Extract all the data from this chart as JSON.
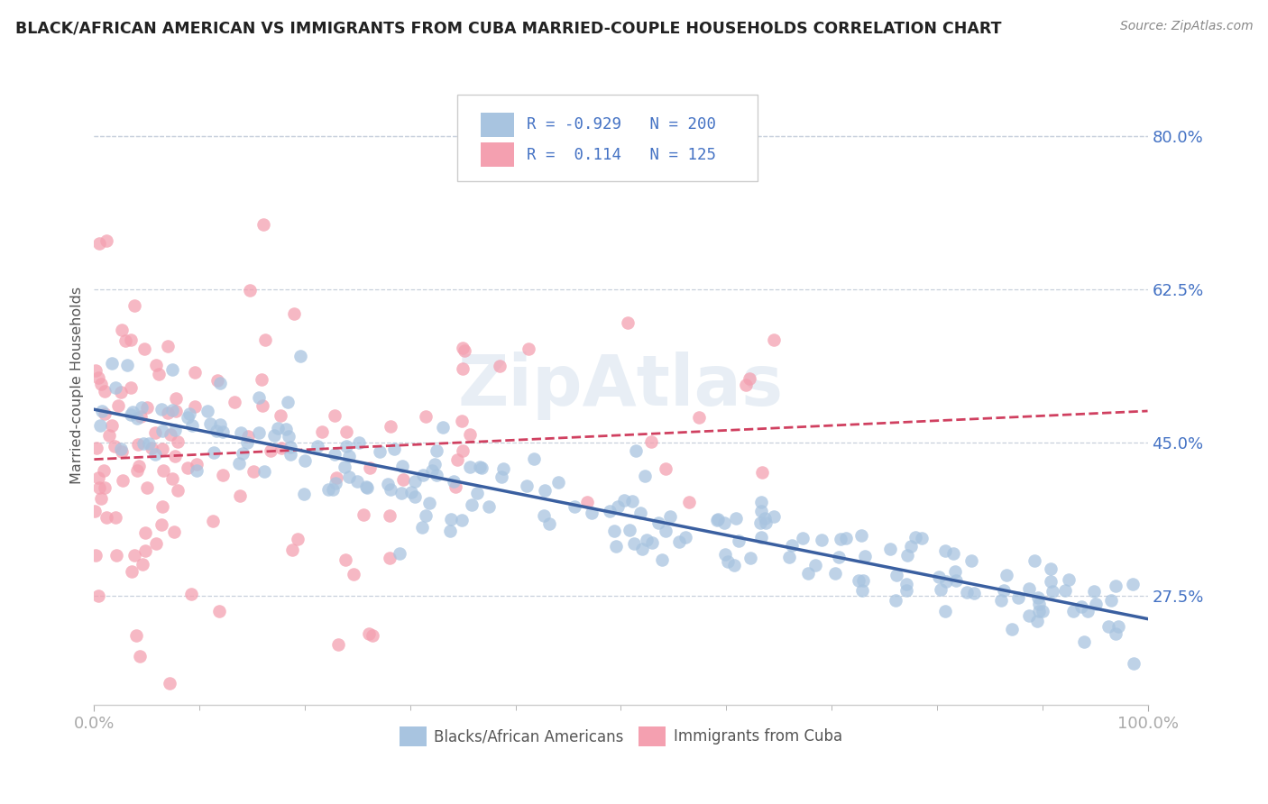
{
  "title": "BLACK/AFRICAN AMERICAN VS IMMIGRANTS FROM CUBA MARRIED-COUPLE HOUSEHOLDS CORRELATION CHART",
  "source": "Source: ZipAtlas.com",
  "ylabel": "Married-couple Households",
  "xlim": [
    0,
    100
  ],
  "ylim": [
    15,
    88
  ],
  "yticks": [
    27.5,
    45.0,
    62.5,
    80.0
  ],
  "blue_color": "#a8c4e0",
  "pink_color": "#f4a0b0",
  "blue_line_color": "#3a5fa0",
  "pink_line_color": "#d04060",
  "legend_blue_r": "-0.929",
  "legend_blue_n": "200",
  "legend_pink_r": "0.114",
  "legend_pink_n": "125",
  "watermark": "ZipAtlas",
  "title_color": "#222222",
  "source_color": "#888888",
  "ylabel_color": "#555555",
  "tick_color": "#4472c4",
  "grid_color": "#c8d0dc"
}
